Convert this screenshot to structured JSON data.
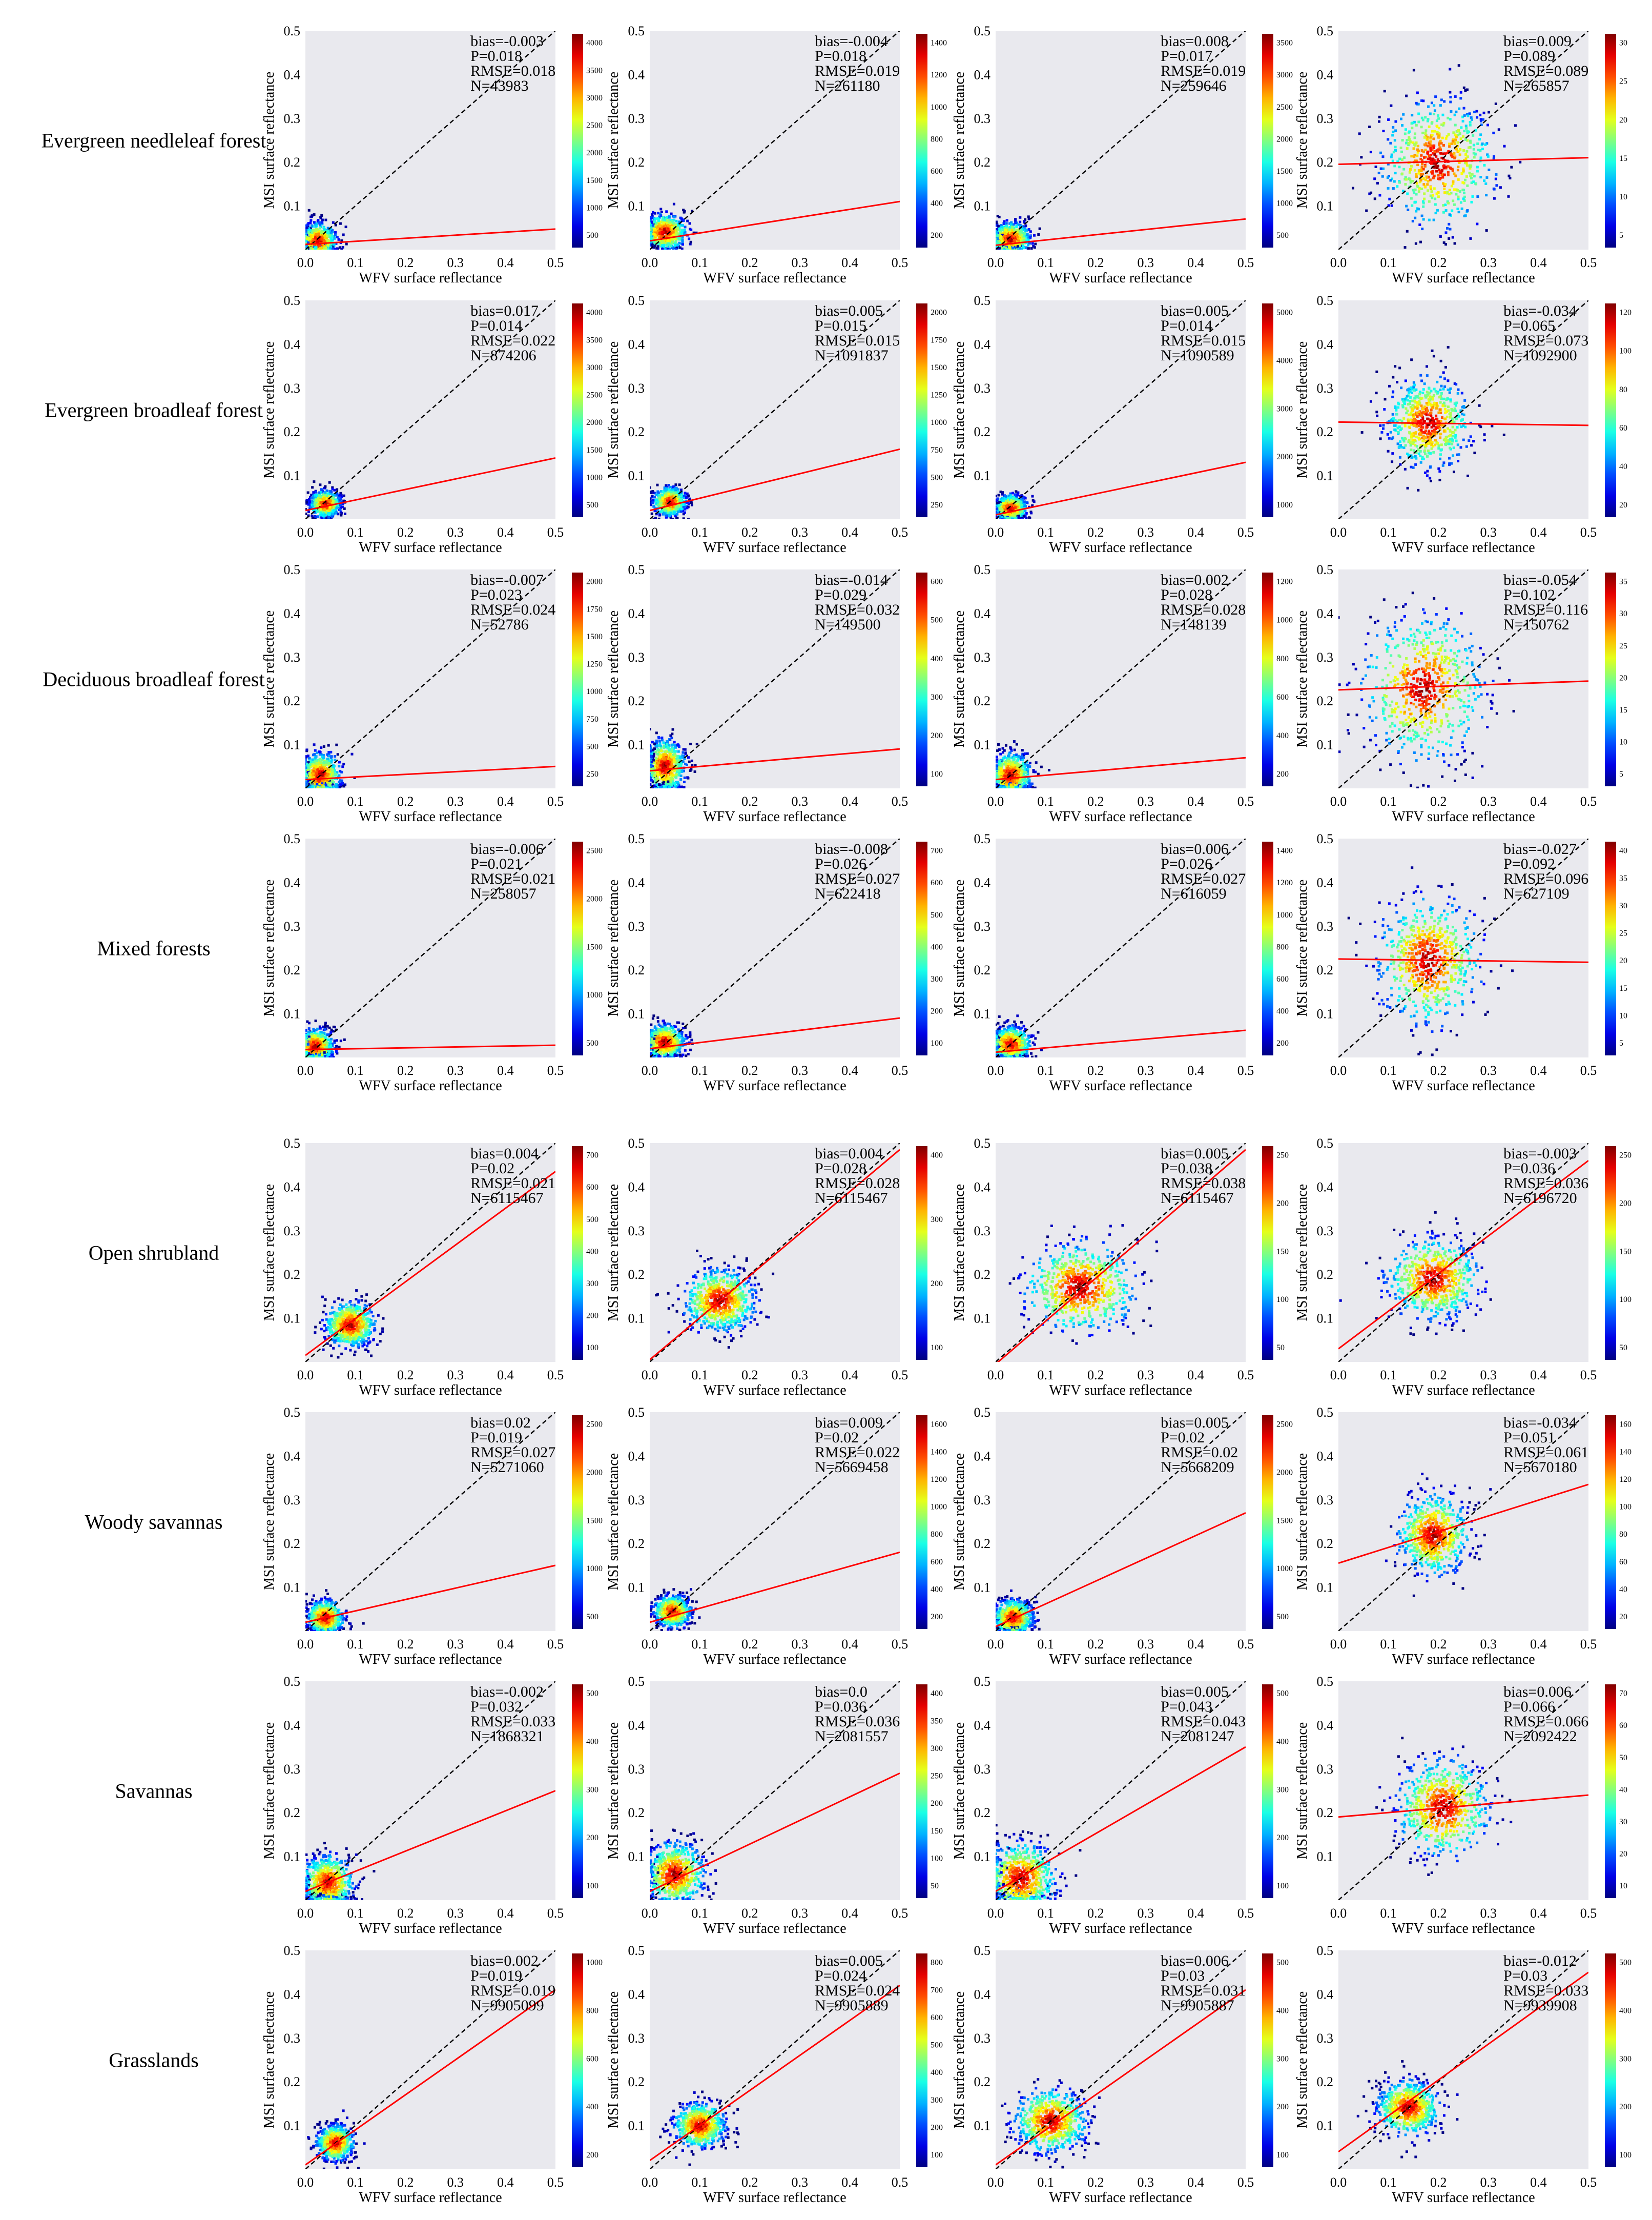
{
  "figure": {
    "row_labels": [
      "Evergreen needleleaf forest",
      "Evergreen broadleaf forest",
      "Deciduous broadleaf forest",
      "Mixed forests",
      "Open shrubland",
      "Woody savannas",
      "Savannas",
      "Grasslands"
    ],
    "xlabel": "WFV surface reflectance",
    "ylabel": "MSI surface reflectance",
    "axis_ticks": [
      "0.0",
      "0.1",
      "0.2",
      "0.3",
      "0.4",
      "0.5"
    ],
    "y_ticks": [
      "0.1",
      "0.2",
      "0.3",
      "0.4",
      "0.5"
    ]
  },
  "chart_data": [
    {
      "type": "scatter",
      "row": "Evergreen needleleaf forest",
      "bias": "bias=-0.003",
      "p": "P=0.018",
      "rmse": "RMSE=0.018",
      "n": "N=43983",
      "xlim": [
        0,
        0.5
      ],
      "ylim": [
        0,
        0.5
      ],
      "center": [
        0.025,
        0.02
      ],
      "spread": [
        0.018,
        0.02
      ],
      "fit": [
        0.012,
        0.07
      ],
      "cticks": [
        "4000",
        "3500",
        "3000",
        "2500",
        "2000",
        "1500",
        "1000",
        "500"
      ]
    },
    {
      "type": "scatter",
      "row": "Evergreen needleleaf forest",
      "bias": "bias=-0.004",
      "p": "P=0.018",
      "rmse": "RMSE=0.019",
      "n": "N=261180",
      "xlim": [
        0,
        0.5
      ],
      "ylim": [
        0,
        0.5
      ],
      "center": [
        0.03,
        0.04
      ],
      "spread": [
        0.022,
        0.02
      ],
      "fit": [
        0.02,
        0.18
      ],
      "cticks": [
        "1400",
        "1200",
        "1000",
        "800",
        "600",
        "400",
        "200"
      ]
    },
    {
      "type": "scatter",
      "row": "Evergreen needleleaf forest",
      "bias": "bias=0.008",
      "p": "P=0.017",
      "rmse": "RMSE=0.019",
      "n": "N=259646",
      "xlim": [
        0,
        0.5
      ],
      "ylim": [
        0,
        0.5
      ],
      "center": [
        0.03,
        0.025
      ],
      "spread": [
        0.02,
        0.018
      ],
      "fit": [
        0.01,
        0.12
      ],
      "cticks": [
        "3500",
        "3000",
        "2500",
        "2000",
        "1500",
        "1000",
        "500"
      ]
    },
    {
      "type": "scatter",
      "row": "Evergreen needleleaf forest",
      "bias": "bias=0.009",
      "p": "P=0.089",
      "rmse": "RMSE=0.089",
      "n": "N=265857",
      "xlim": [
        0,
        0.5
      ],
      "ylim": [
        0,
        0.5
      ],
      "center": [
        0.2,
        0.2
      ],
      "spread": [
        0.055,
        0.07
      ],
      "fit": [
        0.195,
        0.03
      ],
      "cticks": [
        "30",
        "25",
        "20",
        "15",
        "10",
        "5"
      ]
    },
    {
      "type": "scatter",
      "row": "Evergreen broadleaf forest",
      "bias": "bias=0.017",
      "p": "P=0.014",
      "rmse": "RMSE=0.022",
      "n": "N=874206",
      "xlim": [
        0,
        0.5
      ],
      "ylim": [
        0,
        0.5
      ],
      "center": [
        0.04,
        0.035
      ],
      "spread": [
        0.015,
        0.015
      ],
      "fit": [
        0.02,
        0.24
      ],
      "cticks": [
        "4000",
        "3500",
        "3000",
        "2500",
        "2000",
        "1500",
        "1000",
        "500"
      ]
    },
    {
      "type": "scatter",
      "row": "Evergreen broadleaf forest",
      "bias": "bias=0.005",
      "p": "P=0.015",
      "rmse": "RMSE=0.015",
      "n": "N=1091837",
      "xlim": [
        0,
        0.5
      ],
      "ylim": [
        0,
        0.5
      ],
      "center": [
        0.04,
        0.04
      ],
      "spread": [
        0.016,
        0.016
      ],
      "fit": [
        0.02,
        0.28
      ],
      "cticks": [
        "2000",
        "1750",
        "1500",
        "1250",
        "1000",
        "750",
        "500",
        "250"
      ]
    },
    {
      "type": "scatter",
      "row": "Evergreen broadleaf forest",
      "bias": "bias=0.005",
      "p": "P=0.014",
      "rmse": "RMSE=0.015",
      "n": "N=1090589",
      "xlim": [
        0,
        0.5
      ],
      "ylim": [
        0,
        0.5
      ],
      "center": [
        0.03,
        0.025
      ],
      "spread": [
        0.016,
        0.015
      ],
      "fit": [
        0.01,
        0.24
      ],
      "cticks": [
        "5000",
        "4000",
        "3000",
        "2000",
        "1000"
      ]
    },
    {
      "type": "scatter",
      "row": "Evergreen broadleaf forest",
      "bias": "bias=-0.034",
      "p": "P=0.065",
      "rmse": "RMSE=0.073",
      "n": "N=1092900",
      "xlim": [
        0,
        0.5
      ],
      "ylim": [
        0,
        0.5
      ],
      "center": [
        0.18,
        0.22
      ],
      "spread": [
        0.04,
        0.05
      ],
      "fit": [
        0.222,
        -0.015
      ],
      "cticks": [
        "120",
        "100",
        "80",
        "60",
        "40",
        "20"
      ]
    },
    {
      "type": "scatter",
      "row": "Deciduous broadleaf forest",
      "bias": "bias=-0.007",
      "p": "P=0.023",
      "rmse": "RMSE=0.024",
      "n": "N=52786",
      "xlim": [
        0,
        0.5
      ],
      "ylim": [
        0,
        0.5
      ],
      "center": [
        0.03,
        0.03
      ],
      "spread": [
        0.02,
        0.025
      ],
      "fit": [
        0.02,
        0.06
      ],
      "cticks": [
        "2000",
        "1750",
        "1500",
        "1250",
        "1000",
        "750",
        "500",
        "250"
      ]
    },
    {
      "type": "scatter",
      "row": "Deciduous broadleaf forest",
      "bias": "bias=-0.014",
      "p": "P=0.029",
      "rmse": "RMSE=0.032",
      "n": "N=149500",
      "xlim": [
        0,
        0.5
      ],
      "ylim": [
        0,
        0.5
      ],
      "center": [
        0.03,
        0.05
      ],
      "spread": [
        0.02,
        0.03
      ],
      "fit": [
        0.04,
        0.1
      ],
      "cticks": [
        "600",
        "500",
        "400",
        "300",
        "200",
        "100"
      ]
    },
    {
      "type": "scatter",
      "row": "Deciduous broadleaf forest",
      "bias": "bias=0.002",
      "p": "P=0.028",
      "rmse": "RMSE=0.028",
      "n": "N=148139",
      "xlim": [
        0,
        0.5
      ],
      "ylim": [
        0,
        0.5
      ],
      "center": [
        0.03,
        0.03
      ],
      "spread": [
        0.02,
        0.025
      ],
      "fit": [
        0.02,
        0.1
      ],
      "cticks": [
        "1200",
        "1000",
        "800",
        "600",
        "400",
        "200"
      ]
    },
    {
      "type": "scatter",
      "row": "Deciduous broadleaf forest",
      "bias": "bias=-0.054",
      "p": "P=0.102",
      "rmse": "RMSE=0.116",
      "n": "N=150762",
      "xlim": [
        0,
        0.5
      ],
      "ylim": [
        0,
        0.5
      ],
      "center": [
        0.17,
        0.23
      ],
      "spread": [
        0.06,
        0.08
      ],
      "fit": [
        0.225,
        0.04
      ],
      "cticks": [
        "35",
        "30",
        "25",
        "20",
        "15",
        "10",
        "5"
      ]
    },
    {
      "type": "scatter",
      "row": "Mixed forests",
      "bias": "bias=-0.006",
      "p": "P=0.021",
      "rmse": "RMSE=0.021",
      "n": "N=258057",
      "xlim": [
        0,
        0.5
      ],
      "ylim": [
        0,
        0.5
      ],
      "center": [
        0.02,
        0.025
      ],
      "spread": [
        0.018,
        0.02
      ],
      "fit": [
        0.018,
        0.02
      ],
      "cticks": [
        "2500",
        "2000",
        "1500",
        "1000",
        "500"
      ]
    },
    {
      "type": "scatter",
      "row": "Mixed forests",
      "bias": "bias=-0.008",
      "p": "P=0.026",
      "rmse": "RMSE=0.027",
      "n": "N=622418",
      "xlim": [
        0,
        0.5
      ],
      "ylim": [
        0,
        0.5
      ],
      "center": [
        0.03,
        0.035
      ],
      "spread": [
        0.02,
        0.02
      ],
      "fit": [
        0.02,
        0.14
      ],
      "cticks": [
        "700",
        "600",
        "500",
        "400",
        "300",
        "200",
        "100"
      ]
    },
    {
      "type": "scatter",
      "row": "Mixed forests",
      "bias": "bias=0.006",
      "p": "P=0.026",
      "rmse": "RMSE=0.027",
      "n": "N=616059",
      "xlim": [
        0,
        0.5
      ],
      "ylim": [
        0,
        0.5
      ],
      "center": [
        0.03,
        0.03
      ],
      "spread": [
        0.02,
        0.02
      ],
      "fit": [
        0.012,
        0.1
      ],
      "cticks": [
        "1400",
        "1200",
        "1000",
        "800",
        "600",
        "400",
        "200"
      ]
    },
    {
      "type": "scatter",
      "row": "Mixed forests",
      "bias": "bias=-0.027",
      "p": "P=0.092",
      "rmse": "RMSE=0.096",
      "n": "N=627109",
      "xlim": [
        0,
        0.5
      ],
      "ylim": [
        0,
        0.5
      ],
      "center": [
        0.18,
        0.22
      ],
      "spread": [
        0.05,
        0.07
      ],
      "fit": [
        0.225,
        -0.015
      ],
      "cticks": [
        "40",
        "35",
        "30",
        "25",
        "20",
        "15",
        "10",
        "5"
      ]
    },
    {
      "type": "scatter",
      "row": "Open shrubland",
      "bias": "bias=0.004",
      "p": "P=0.02",
      "rmse": "RMSE=0.021",
      "n": "N=6115467",
      "xlim": [
        0,
        0.5
      ],
      "ylim": [
        0,
        0.5
      ],
      "center": [
        0.09,
        0.085
      ],
      "spread": [
        0.025,
        0.025
      ],
      "fit": [
        0.015,
        0.84
      ],
      "cticks": [
        "700",
        "600",
        "500",
        "400",
        "300",
        "200",
        "100"
      ]
    },
    {
      "type": "scatter",
      "row": "Open shrubland",
      "bias": "bias=0.004",
      "p": "P=0.028",
      "rmse": "RMSE=0.028",
      "n": "N=6115467",
      "xlim": [
        0,
        0.5
      ],
      "ylim": [
        0,
        0.5
      ],
      "center": [
        0.14,
        0.14
      ],
      "spread": [
        0.035,
        0.035
      ],
      "fit": [
        0.005,
        0.96
      ],
      "cticks": [
        "400",
        "300",
        "200",
        "100"
      ]
    },
    {
      "type": "scatter",
      "row": "Open shrubland",
      "bias": "bias=0.005",
      "p": "P=0.038",
      "rmse": "RMSE=0.038",
      "n": "N=6115467",
      "xlim": [
        0,
        0.5
      ],
      "ylim": [
        0,
        0.5
      ],
      "center": [
        0.17,
        0.17
      ],
      "spread": [
        0.055,
        0.05
      ],
      "fit": [
        -0.005,
        0.98
      ],
      "cticks": [
        "250",
        "200",
        "150",
        "100",
        "50"
      ]
    },
    {
      "type": "scatter",
      "row": "Open shrubland",
      "bias": "bias=-0.003",
      "p": "P=0.036",
      "rmse": "RMSE=0.036",
      "n": "N=6196720",
      "xlim": [
        0,
        0.5
      ],
      "ylim": [
        0,
        0.5
      ],
      "center": [
        0.19,
        0.19
      ],
      "spread": [
        0.045,
        0.045
      ],
      "fit": [
        0.03,
        0.86
      ],
      "cticks": [
        "250",
        "200",
        "150",
        "100",
        "50"
      ]
    },
    {
      "type": "scatter",
      "row": "Woody savannas",
      "bias": "bias=0.02",
      "p": "P=0.019",
      "rmse": "RMSE=0.027",
      "n": "N=5271060",
      "xlim": [
        0,
        0.5
      ],
      "ylim": [
        0,
        0.5
      ],
      "center": [
        0.04,
        0.03
      ],
      "spread": [
        0.018,
        0.02
      ],
      "fit": [
        0.02,
        0.26
      ],
      "cticks": [
        "2500",
        "2000",
        "1500",
        "1000",
        "500"
      ]
    },
    {
      "type": "scatter",
      "row": "Woody savannas",
      "bias": "bias=0.009",
      "p": "P=0.02",
      "rmse": "RMSE=0.022",
      "n": "N=5669458",
      "xlim": [
        0,
        0.5
      ],
      "ylim": [
        0,
        0.5
      ],
      "center": [
        0.045,
        0.045
      ],
      "spread": [
        0.018,
        0.018
      ],
      "fit": [
        0.02,
        0.32
      ],
      "cticks": [
        "1600",
        "1400",
        "1200",
        "1000",
        "800",
        "600",
        "400",
        "200"
      ]
    },
    {
      "type": "scatter",
      "row": "Woody savannas",
      "bias": "bias=0.005",
      "p": "P=0.02",
      "rmse": "RMSE=0.02",
      "n": "N=5668209",
      "xlim": [
        0,
        0.5
      ],
      "ylim": [
        0,
        0.5
      ],
      "center": [
        0.035,
        0.03
      ],
      "spread": [
        0.02,
        0.02
      ],
      "fit": [
        0.01,
        0.52
      ],
      "cticks": [
        "2500",
        "2000",
        "1500",
        "1000",
        "500"
      ]
    },
    {
      "type": "scatter",
      "row": "Woody savannas",
      "bias": "bias=-0.034",
      "p": "P=0.051",
      "rmse": "RMSE=0.061",
      "n": "N=5670180",
      "xlim": [
        0,
        0.5
      ],
      "ylim": [
        0,
        0.5
      ],
      "center": [
        0.19,
        0.22
      ],
      "spread": [
        0.035,
        0.045
      ],
      "fit": [
        0.155,
        0.36
      ],
      "cticks": [
        "160",
        "140",
        "120",
        "100",
        "80",
        "60",
        "40",
        "20"
      ]
    },
    {
      "type": "scatter",
      "row": "Savannas",
      "bias": "bias=-0.002",
      "p": "P=0.032",
      "rmse": "RMSE=0.033",
      "n": "N=1868321",
      "xlim": [
        0,
        0.5
      ],
      "ylim": [
        0,
        0.5
      ],
      "center": [
        0.045,
        0.04
      ],
      "spread": [
        0.025,
        0.03
      ],
      "fit": [
        0.02,
        0.46
      ],
      "cticks": [
        "500",
        "400",
        "300",
        "200",
        "100"
      ]
    },
    {
      "type": "scatter",
      "row": "Savannas",
      "bias": "bias=0.0",
      "p": "P=0.036",
      "rmse": "RMSE=0.036",
      "n": "N=2081557",
      "xlim": [
        0,
        0.5
      ],
      "ylim": [
        0,
        0.5
      ],
      "center": [
        0.05,
        0.06
      ],
      "spread": [
        0.03,
        0.035
      ],
      "fit": [
        0.02,
        0.54
      ],
      "cticks": [
        "400",
        "350",
        "300",
        "250",
        "200",
        "150",
        "100",
        "50"
      ]
    },
    {
      "type": "scatter",
      "row": "Savannas",
      "bias": "bias=0.005",
      "p": "P=0.043",
      "rmse": "RMSE=0.043",
      "n": "N=2081247",
      "xlim": [
        0,
        0.5
      ],
      "ylim": [
        0,
        0.5
      ],
      "center": [
        0.05,
        0.05
      ],
      "spread": [
        0.035,
        0.04
      ],
      "fit": [
        0.02,
        0.66
      ],
      "cticks": [
        "500",
        "400",
        "300",
        "200",
        "100"
      ]
    },
    {
      "type": "scatter",
      "row": "Savannas",
      "bias": "bias=0.006",
      "p": "P=0.066",
      "rmse": "RMSE=0.066",
      "n": "N=2092422",
      "xlim": [
        0,
        0.5
      ],
      "ylim": [
        0,
        0.5
      ],
      "center": [
        0.21,
        0.21
      ],
      "spread": [
        0.045,
        0.055
      ],
      "fit": [
        0.19,
        0.1
      ],
      "cticks": [
        "70",
        "60",
        "50",
        "40",
        "30",
        "20",
        "10"
      ]
    },
    {
      "type": "scatter",
      "row": "Grasslands",
      "bias": "bias=0.002",
      "p": "P=0.019",
      "rmse": "RMSE=0.019",
      "n": "N=9905099",
      "xlim": [
        0,
        0.5
      ],
      "ylim": [
        0,
        0.5
      ],
      "center": [
        0.06,
        0.06
      ],
      "spread": [
        0.018,
        0.02
      ],
      "fit": [
        0.01,
        0.8
      ],
      "cticks": [
        "1000",
        "800",
        "600",
        "400",
        "200"
      ]
    },
    {
      "type": "scatter",
      "row": "Grasslands",
      "bias": "bias=0.005",
      "p": "P=0.024",
      "rmse": "RMSE=0.024",
      "n": "N=9905889",
      "xlim": [
        0,
        0.5
      ],
      "ylim": [
        0,
        0.5
      ],
      "center": [
        0.1,
        0.1
      ],
      "spread": [
        0.025,
        0.025
      ],
      "fit": [
        0.02,
        0.8
      ],
      "cticks": [
        "800",
        "700",
        "600",
        "500",
        "400",
        "300",
        "200",
        "100"
      ]
    },
    {
      "type": "scatter",
      "row": "Grasslands",
      "bias": "bias=0.006",
      "p": "P=0.03",
      "rmse": "RMSE=0.031",
      "n": "N=9905887",
      "xlim": [
        0,
        0.5
      ],
      "ylim": [
        0,
        0.5
      ],
      "center": [
        0.11,
        0.11
      ],
      "spread": [
        0.035,
        0.035
      ],
      "fit": [
        0.01,
        0.8
      ],
      "cticks": [
        "500",
        "400",
        "300",
        "200",
        "100"
      ]
    },
    {
      "type": "scatter",
      "row": "Grasslands",
      "bias": "bias=-0.012",
      "p": "P=0.03",
      "rmse": "RMSE=0.033",
      "n": "N=9939908",
      "xlim": [
        0,
        0.5
      ],
      "ylim": [
        0,
        0.5
      ],
      "center": [
        0.14,
        0.14
      ],
      "spread": [
        0.03,
        0.03
      ],
      "fit": [
        0.04,
        0.82
      ],
      "cticks": [
        "500",
        "400",
        "300",
        "200",
        "100"
      ]
    }
  ]
}
